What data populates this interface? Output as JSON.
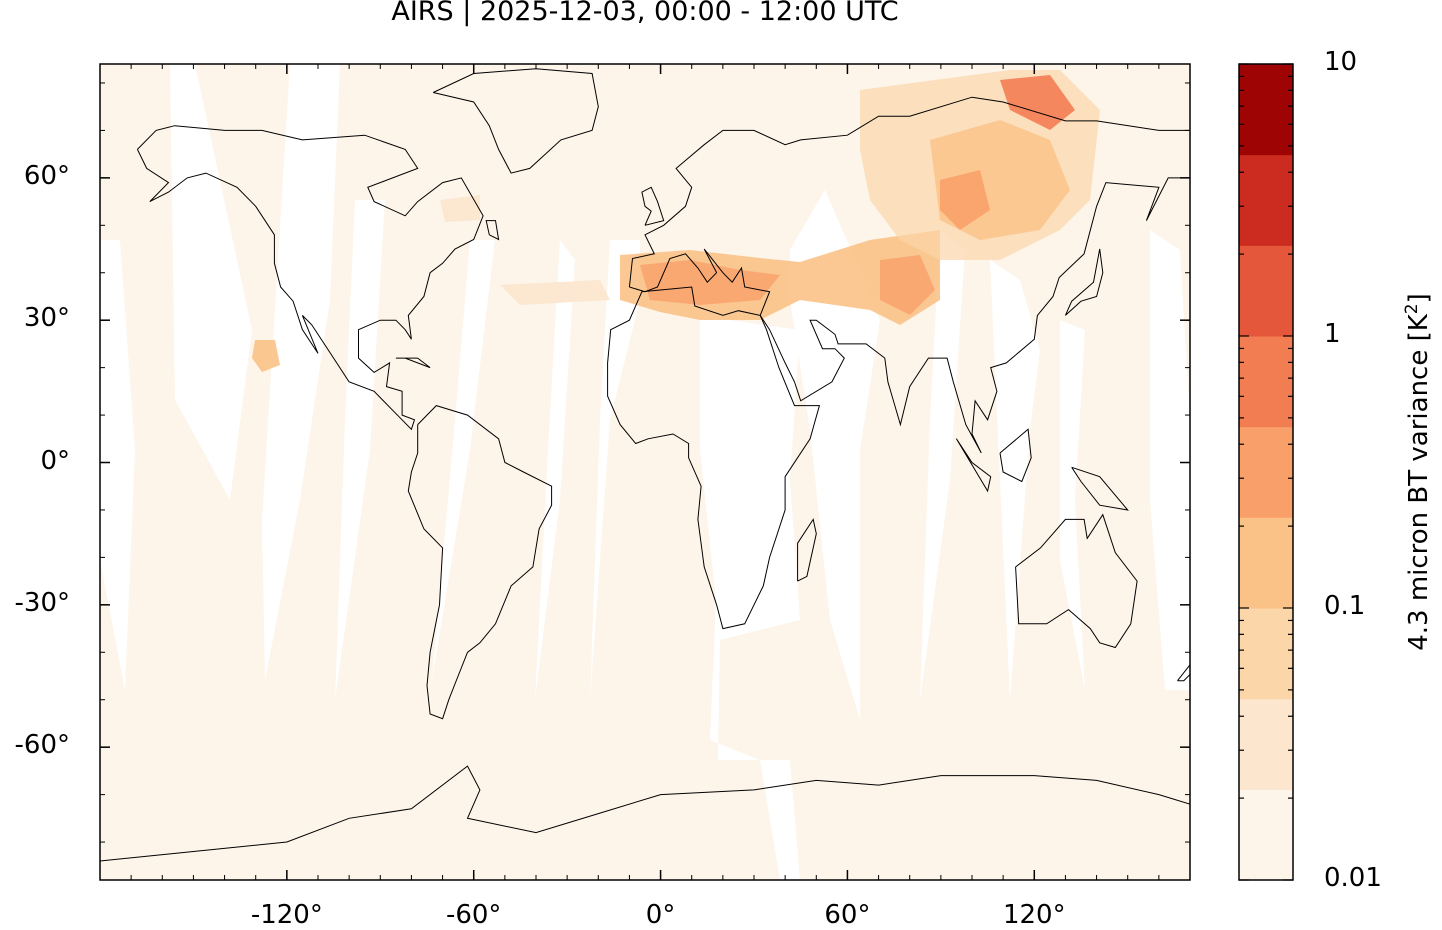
{
  "title": "AIRS | 2025-12-03, 00:00 - 12:00 UTC",
  "map": {
    "projection": "equirectangular",
    "lon_range": [
      -180,
      170
    ],
    "lat_range": [
      -88,
      84
    ],
    "background_color": "#fdf4ea",
    "no_data_color": "#ffffff",
    "coastline_color": "#000000",
    "lon_ticks": [
      {
        "value": -120,
        "label": "-120°"
      },
      {
        "value": -60,
        "label": "-60°"
      },
      {
        "value": 0,
        "label": "0°"
      },
      {
        "value": 60,
        "label": "60°"
      },
      {
        "value": 120,
        "label": "120°"
      }
    ],
    "lat_ticks": [
      {
        "value": 60,
        "label": "60°"
      },
      {
        "value": 30,
        "label": "30°"
      },
      {
        "value": 0,
        "label": "0°"
      },
      {
        "value": -30,
        "label": "-30°"
      },
      {
        "value": -60,
        "label": "-60°"
      }
    ]
  },
  "colorbar": {
    "title_text": "4.3 micron BT variance [K",
    "title_sup": "2",
    "title_close": "]",
    "scale": "log",
    "range": [
      0.01,
      10
    ],
    "tick_labels": [
      {
        "value": 10,
        "label": "10"
      },
      {
        "value": 1,
        "label": "1"
      },
      {
        "value": 0.1,
        "label": "0.1"
      },
      {
        "value": 0.01,
        "label": "0.01"
      }
    ],
    "colors": [
      "#fdf4ea",
      "#fce6cd",
      "#fbd6a9",
      "#fbc287",
      "#f9a06a",
      "#f37d52",
      "#e4573b",
      "#cc2c1f",
      "#9f0404"
    ]
  }
}
